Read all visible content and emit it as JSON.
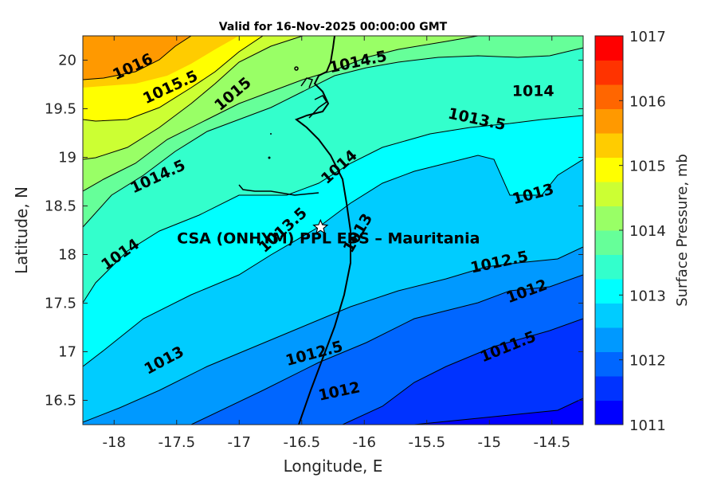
{
  "chart_data": {
    "type": "contour",
    "title": "Valid for 16-Nov-2025 00:00:00 GMT",
    "xlabel": "Longitude, E",
    "ylabel": "Latitude, N",
    "xlim": [
      -18.25,
      -14.25
    ],
    "ylim": [
      16.25,
      20.25
    ],
    "xticks": [
      "-18",
      "-17.5",
      "-17",
      "-16.5",
      "-16",
      "-15.5",
      "-15",
      "-14.5"
    ],
    "xtick_values": [
      -18,
      -17.5,
      -17,
      -16.5,
      -16,
      -15.5,
      -15,
      -14.5
    ],
    "yticks": [
      "16.5",
      "17",
      "17.5",
      "18",
      "18.5",
      "19",
      "19.5",
      "20"
    ],
    "ytick_values": [
      16.5,
      17,
      17.5,
      18,
      18.5,
      19,
      19.5,
      20
    ],
    "site": {
      "label": "CSA (ONHYM) PPL EBS  – Mauritania",
      "lon": -16.35,
      "lat": 18.28
    },
    "contour_labels": [
      {
        "text": "1016",
        "lon": -17.85,
        "lat": 19.93,
        "angle": -25
      },
      {
        "text": "1015.5",
        "lon": -17.55,
        "lat": 19.72,
        "angle": -25
      },
      {
        "text": "1015",
        "lon": -17.05,
        "lat": 19.65,
        "angle": -40
      },
      {
        "text": "1014.5",
        "lon": -16.05,
        "lat": 19.98,
        "angle": -12
      },
      {
        "text": "1014",
        "lon": -14.65,
        "lat": 19.68,
        "angle": 0
      },
      {
        "text": "1013.5",
        "lon": -15.1,
        "lat": 19.39,
        "angle": 12
      },
      {
        "text": "1014.5",
        "lon": -17.65,
        "lat": 18.8,
        "angle": -25
      },
      {
        "text": "1014",
        "lon": -16.2,
        "lat": 18.9,
        "angle": -42
      },
      {
        "text": "1013",
        "lon": -14.65,
        "lat": 18.62,
        "angle": -15
      },
      {
        "text": "1014",
        "lon": -17.95,
        "lat": 18.0,
        "angle": -35
      },
      {
        "text": "1013.5",
        "lon": -16.65,
        "lat": 18.25,
        "angle": -42
      },
      {
        "text": "1013",
        "lon": -16.05,
        "lat": 18.22,
        "angle": -60
      },
      {
        "text": "1012.5",
        "lon": -14.92,
        "lat": 17.92,
        "angle": -12
      },
      {
        "text": "1012",
        "lon": -14.7,
        "lat": 17.62,
        "angle": -20
      },
      {
        "text": "1013",
        "lon": -17.6,
        "lat": 16.91,
        "angle": -28
      },
      {
        "text": "1012.5",
        "lon": -16.4,
        "lat": 16.98,
        "angle": -15
      },
      {
        "text": "1011.5",
        "lon": -14.85,
        "lat": 17.05,
        "angle": -22
      },
      {
        "text": "1012",
        "lon": -16.2,
        "lat": 16.59,
        "angle": -12
      }
    ],
    "colorbar": {
      "label": "Surface Pressure, mb",
      "min": 1011,
      "max": 1017,
      "step": 0.5,
      "tick_labels": [
        "1011",
        "1012",
        "1013",
        "1014",
        "1015",
        "1016",
        "1017"
      ],
      "tick_values": [
        1011,
        1012,
        1013,
        1014,
        1015,
        1016,
        1017
      ],
      "colors": [
        "#0000ff",
        "#0033ff",
        "#0066ff",
        "#0099ff",
        "#00ccff",
        "#00ffff",
        "#33ffcc",
        "#66ff99",
        "#99ff66",
        "#ccff33",
        "#ffff00",
        "#ffcc00",
        "#ff9900",
        "#ff6600",
        "#ff3300",
        "#ff0000"
      ]
    }
  }
}
